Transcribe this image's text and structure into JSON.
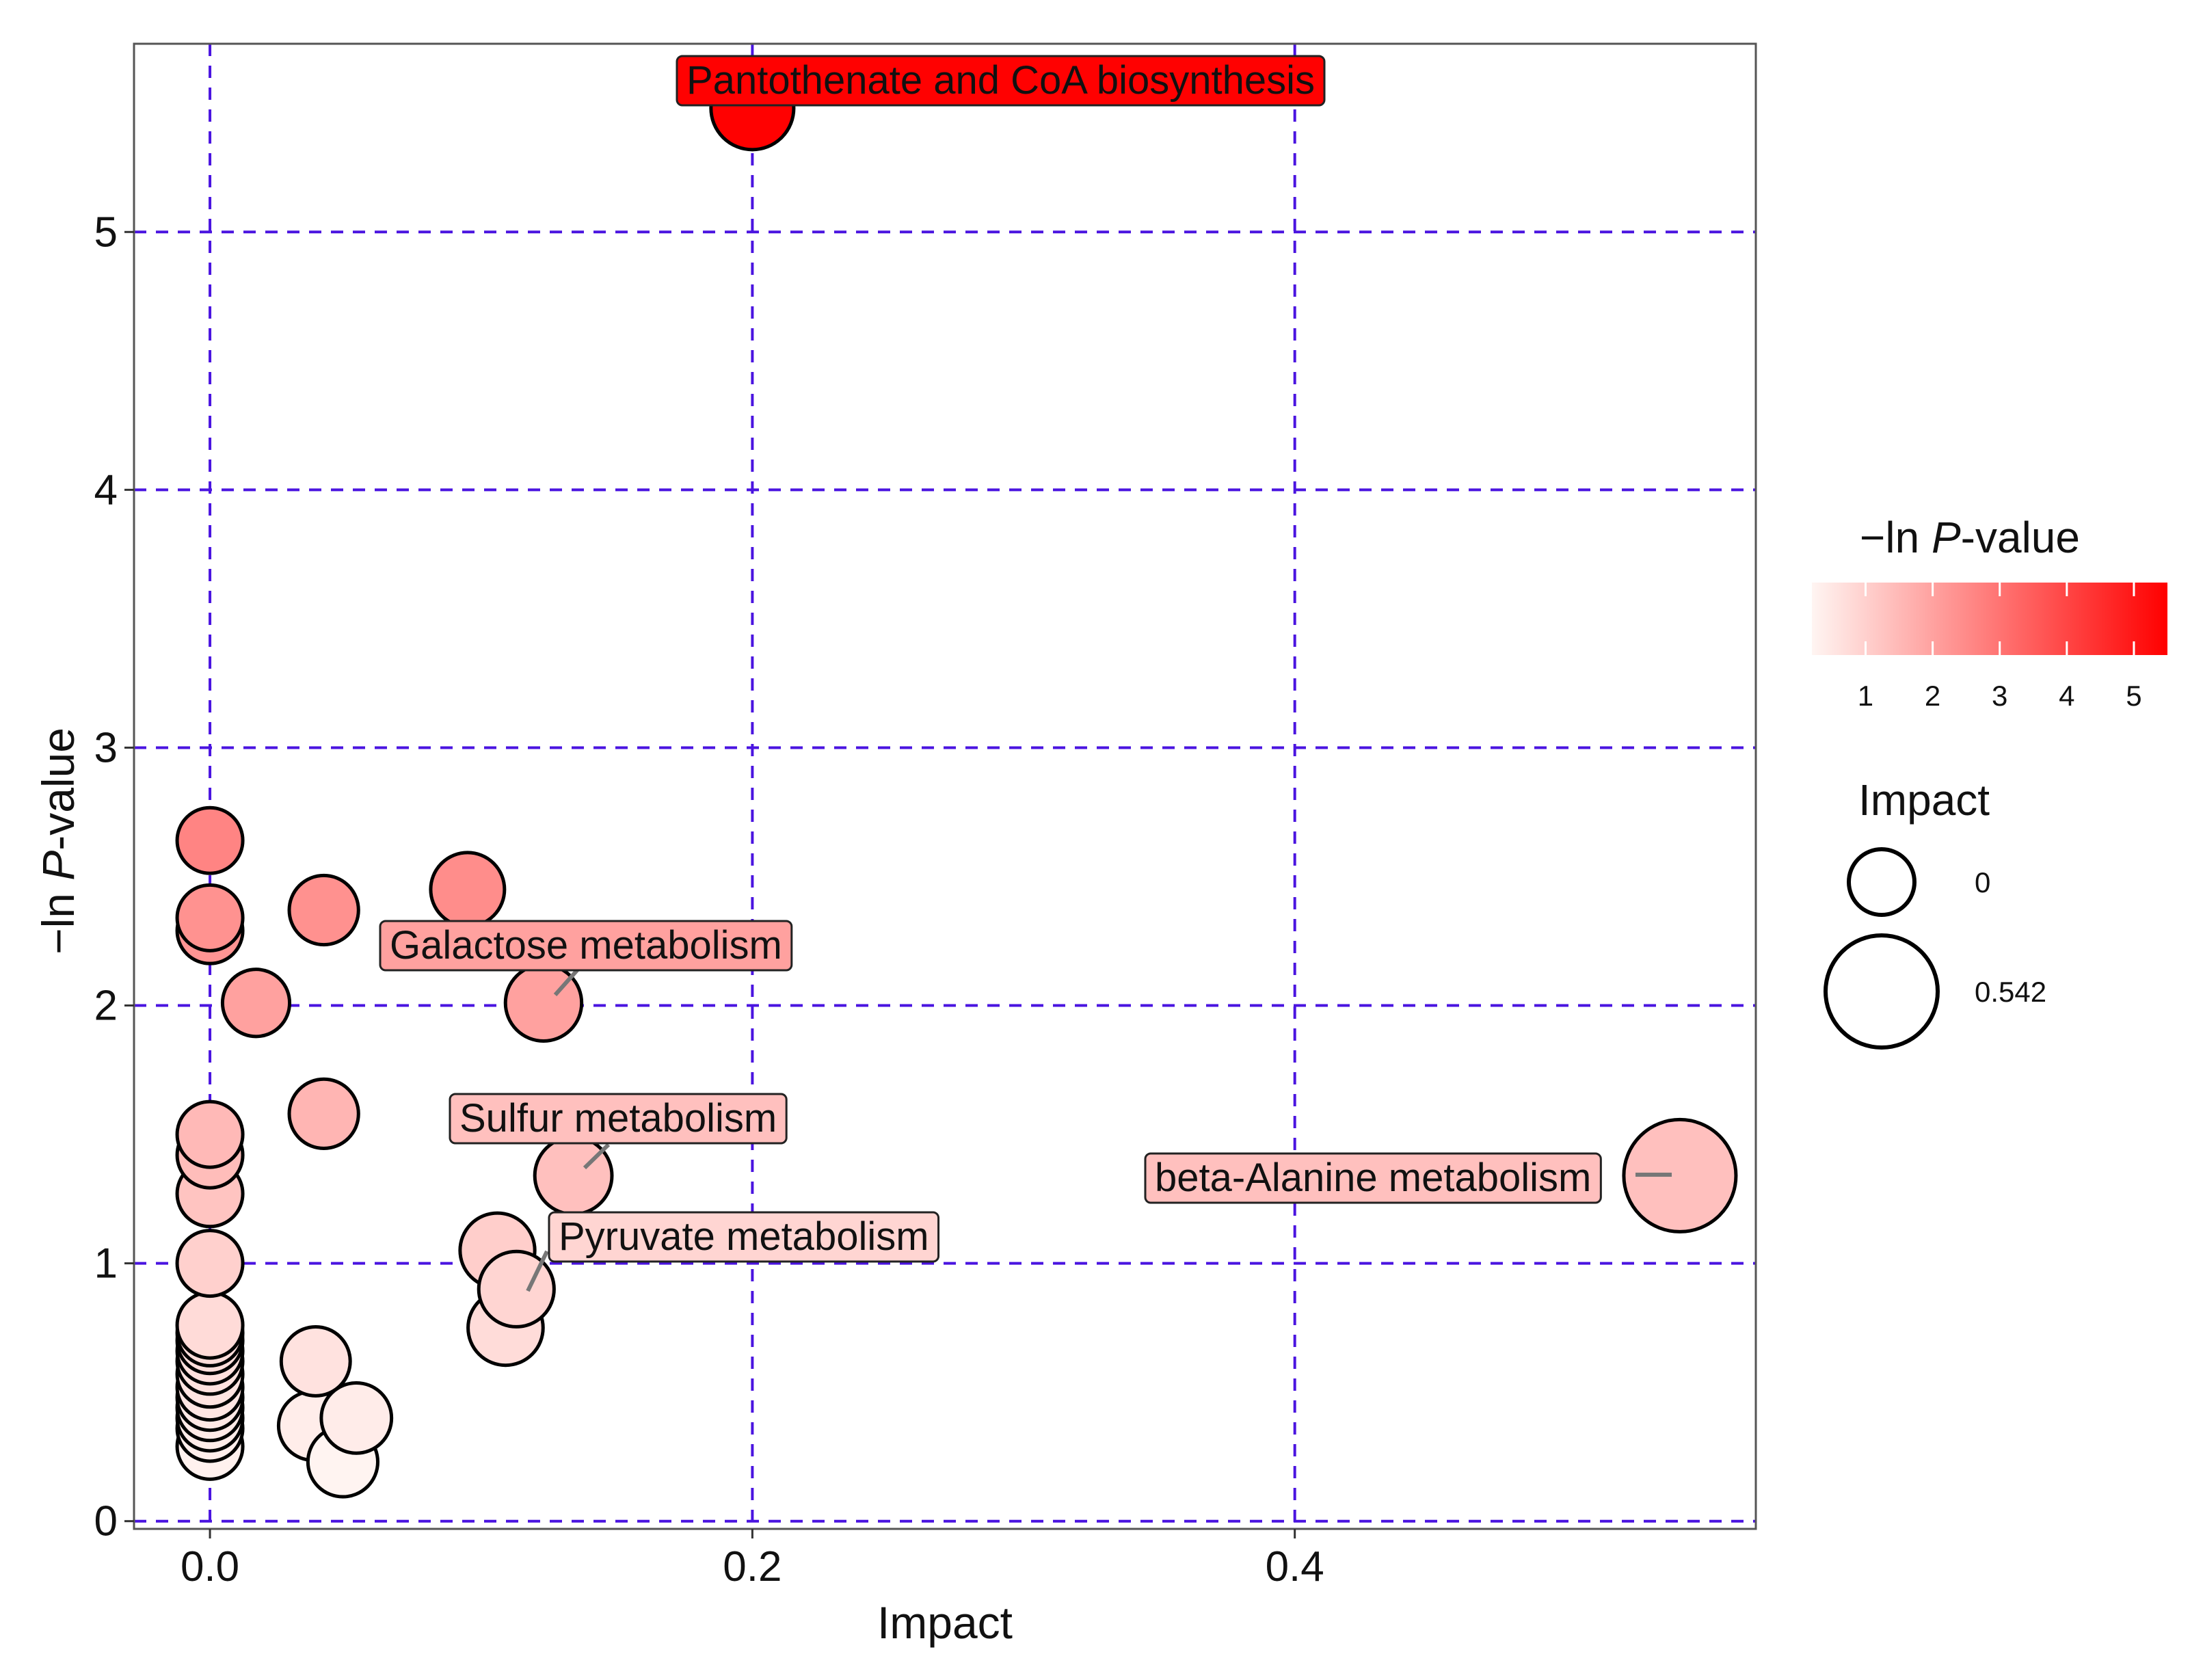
{
  "chart_data": {
    "type": "scatter",
    "title": "",
    "xlabel": "Impact",
    "ylabel_parts": [
      "−ln ",
      "P",
      "-value"
    ],
    "xlim": [
      -0.028,
      0.57
    ],
    "ylim": [
      -0.03,
      5.73
    ],
    "x_ticks": [
      {
        "value": 0.0,
        "label": "0.0"
      },
      {
        "value": 0.2,
        "label": "0.2"
      },
      {
        "value": 0.4,
        "label": "0.4"
      }
    ],
    "y_ticks": [
      {
        "value": 0,
        "label": "0"
      },
      {
        "value": 1,
        "label": "1"
      },
      {
        "value": 2,
        "label": "2"
      },
      {
        "value": 3,
        "label": "3"
      },
      {
        "value": 4,
        "label": "4"
      },
      {
        "value": 5,
        "label": "5"
      }
    ],
    "grid": true,
    "grid_color": "#4a14e0",
    "color_scale": {
      "low": "#fff5f2",
      "high": "#ff0000",
      "min": 0.2,
      "max": 5.5
    },
    "size_scale": {
      "min_impact": 0,
      "max_impact": 0.542
    },
    "points": [
      {
        "x": 0.2,
        "y": 5.48,
        "label": "Pantothenate and CoA biosynthesis"
      },
      {
        "x": 0.0,
        "y": 2.64
      },
      {
        "x": 0.0,
        "y": 2.34
      },
      {
        "x": 0.0,
        "y": 2.29
      },
      {
        "x": 0.017,
        "y": 2.01
      },
      {
        "x": 0.042,
        "y": 2.37
      },
      {
        "x": 0.095,
        "y": 2.45
      },
      {
        "x": 0.123,
        "y": 2.01,
        "label": "Galactose metabolism"
      },
      {
        "x": 0.042,
        "y": 1.58
      },
      {
        "x": 0.0,
        "y": 1.5
      },
      {
        "x": 0.0,
        "y": 1.42
      },
      {
        "x": 0.0,
        "y": 1.27
      },
      {
        "x": 0.0,
        "y": 1.0
      },
      {
        "x": 0.134,
        "y": 1.34,
        "label": "Sulfur metabolism"
      },
      {
        "x": 0.106,
        "y": 1.05
      },
      {
        "x": 0.113,
        "y": 0.9,
        "label": "Pyruvate metabolism"
      },
      {
        "x": 0.109,
        "y": 0.75
      },
      {
        "x": 0.542,
        "y": 1.34,
        "label": "beta-Alanine metabolism"
      },
      {
        "x": 0.0,
        "y": 0.76
      },
      {
        "x": 0.0,
        "y": 0.73
      },
      {
        "x": 0.0,
        "y": 0.7
      },
      {
        "x": 0.0,
        "y": 0.66
      },
      {
        "x": 0.0,
        "y": 0.62
      },
      {
        "x": 0.0,
        "y": 0.57
      },
      {
        "x": 0.0,
        "y": 0.52
      },
      {
        "x": 0.0,
        "y": 0.48
      },
      {
        "x": 0.0,
        "y": 0.44
      },
      {
        "x": 0.0,
        "y": 0.4
      },
      {
        "x": 0.0,
        "y": 0.36
      },
      {
        "x": 0.0,
        "y": 0.29
      },
      {
        "x": 0.039,
        "y": 0.62
      },
      {
        "x": 0.054,
        "y": 0.4
      },
      {
        "x": 0.038,
        "y": 0.37
      },
      {
        "x": 0.049,
        "y": 0.23
      }
    ],
    "legend": {
      "placement": "right",
      "color_title_parts": [
        "−ln ",
        "P",
        "-value"
      ],
      "color_ticks": [
        "1",
        "2",
        "3",
        "4",
        "5"
      ],
      "size_title": "Impact",
      "size_entries": [
        {
          "impact": 0,
          "label": "0"
        },
        {
          "impact": 0.542,
          "label": "0.542"
        }
      ]
    }
  }
}
